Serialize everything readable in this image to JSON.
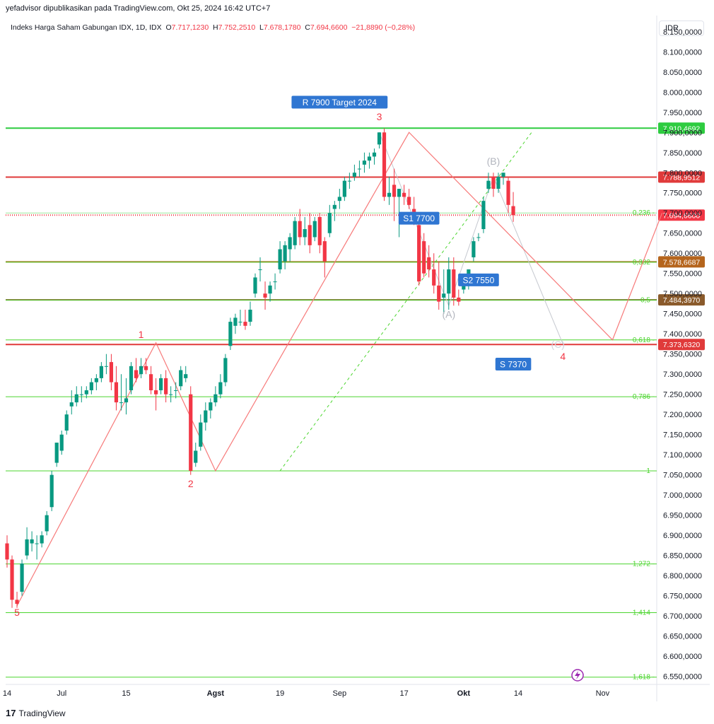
{
  "header": {
    "publisher": "yefadvisor dipublikasikan pada TradingView.com, Okt 25, 2024 16:42 UTC+7",
    "symbol_title": "Indeks Harga Saham Gabungan IDX, 1D, IDX",
    "ohlc": {
      "O": "7.717,1230",
      "H": "7.752,2510",
      "L": "7.678,1780",
      "C": "7.694,6600",
      "change": "−21,8890 (−0,28%)"
    }
  },
  "currency": "IDR",
  "brand": {
    "name": "TradingView",
    "logo_text": "17"
  },
  "colors": {
    "up": "#089981",
    "down": "#f23645",
    "fib": "#4cd52f",
    "red_line": "#e03a3a",
    "brown_line": "#8a5a2b",
    "wave": "#f77a7a",
    "label_blue": "#2f76d2",
    "grey_wave": "#c5c8cf"
  },
  "chart_data": {
    "type": "candlestick",
    "y_axis": {
      "ylim": [
        6530,
        8190
      ],
      "ticks": [
        "8.150,0000",
        "8.100,0000",
        "8.050,0000",
        "8.000,0000",
        "7.950,0000",
        "7.900,0000",
        "7.850,0000",
        "7.800,0000",
        "7.750,0000",
        "7.700,0000",
        "7.650,0000",
        "7.600,0000",
        "7.550,0000",
        "7.500,0000",
        "7.450,0000",
        "7.400,0000",
        "7.350,0000",
        "7.300,0000",
        "7.250,0000",
        "7.200,0000",
        "7.150,0000",
        "7.100,0000",
        "7.050,0000",
        "7.000,0000",
        "6.950,0000",
        "6.900,0000",
        "6.850,0000",
        "6.800,0000",
        "6.750,0000",
        "6.700,0000",
        "6.650,0000",
        "6.600,0000",
        "6.550,0000"
      ],
      "tick_values": [
        8150,
        8100,
        8050,
        8000,
        7950,
        7900,
        7850,
        7800,
        7750,
        7700,
        7650,
        7600,
        7550,
        7500,
        7450,
        7400,
        7350,
        7300,
        7250,
        7200,
        7150,
        7100,
        7050,
        7000,
        6950,
        6900,
        6850,
        6800,
        6750,
        6700,
        6650,
        6600,
        6550
      ]
    },
    "x_axis": {
      "labels": [
        "14",
        "Jul",
        "15",
        "Agst",
        "19",
        "Sep",
        "17",
        "Okt",
        "14",
        "Nov"
      ],
      "bold": [
        false,
        false,
        false,
        true,
        false,
        false,
        false,
        true,
        false,
        false
      ],
      "label_index": [
        0,
        11,
        24,
        42,
        55,
        67,
        80,
        92,
        103,
        120
      ]
    },
    "candles": [
      {
        "o": 6880,
        "h": 6900,
        "l": 6820,
        "c": 6840
      },
      {
        "o": 6840,
        "h": 6850,
        "l": 6720,
        "c": 6740
      },
      {
        "o": 6740,
        "h": 6760,
        "l": 6720,
        "c": 6730
      },
      {
        "o": 6760,
        "h": 6840,
        "l": 6750,
        "c": 6830
      },
      {
        "o": 6850,
        "h": 6920,
        "l": 6840,
        "c": 6890
      },
      {
        "o": 6880,
        "h": 6910,
        "l": 6860,
        "c": 6890
      },
      {
        "o": 6880,
        "h": 6900,
        "l": 6840,
        "c": 6880
      },
      {
        "o": 6880,
        "h": 6910,
        "l": 6870,
        "c": 6900
      },
      {
        "o": 6910,
        "h": 6960,
        "l": 6900,
        "c": 6950
      },
      {
        "o": 6970,
        "h": 7060,
        "l": 6960,
        "c": 7050
      },
      {
        "o": 7080,
        "h": 7130,
        "l": 7070,
        "c": 7130
      },
      {
        "o": 7110,
        "h": 7160,
        "l": 7100,
        "c": 7150
      },
      {
        "o": 7160,
        "h": 7210,
        "l": 7150,
        "c": 7200
      },
      {
        "o": 7220,
        "h": 7260,
        "l": 7200,
        "c": 7230
      },
      {
        "o": 7230,
        "h": 7270,
        "l": 7220,
        "c": 7250
      },
      {
        "o": 7250,
        "h": 7270,
        "l": 7230,
        "c": 7250
      },
      {
        "o": 7250,
        "h": 7270,
        "l": 7240,
        "c": 7260
      },
      {
        "o": 7260,
        "h": 7290,
        "l": 7250,
        "c": 7280
      },
      {
        "o": 7280,
        "h": 7300,
        "l": 7260,
        "c": 7290
      },
      {
        "o": 7290,
        "h": 7330,
        "l": 7280,
        "c": 7320
      },
      {
        "o": 7320,
        "h": 7350,
        "l": 7300,
        "c": 7320
      },
      {
        "o": 7330,
        "h": 7350,
        "l": 7260,
        "c": 7280
      },
      {
        "o": 7280,
        "h": 7320,
        "l": 7210,
        "c": 7230
      },
      {
        "o": 7230,
        "h": 7300,
        "l": 7210,
        "c": 7230
      },
      {
        "o": 7230,
        "h": 7290,
        "l": 7200,
        "c": 7240
      },
      {
        "o": 7260,
        "h": 7330,
        "l": 7250,
        "c": 7320
      },
      {
        "o": 7310,
        "h": 7340,
        "l": 7280,
        "c": 7290
      },
      {
        "o": 7300,
        "h": 7340,
        "l": 7290,
        "c": 7320
      },
      {
        "o": 7320,
        "h": 7340,
        "l": 7300,
        "c": 7310
      },
      {
        "o": 7300,
        "h": 7320,
        "l": 7250,
        "c": 7260
      },
      {
        "o": 7260,
        "h": 7290,
        "l": 7210,
        "c": 7250
      },
      {
        "o": 7260,
        "h": 7300,
        "l": 7250,
        "c": 7290
      },
      {
        "o": 7290,
        "h": 7310,
        "l": 7230,
        "c": 7250
      },
      {
        "o": 7250,
        "h": 7270,
        "l": 7230,
        "c": 7250
      },
      {
        "o": 7260,
        "h": 7280,
        "l": 7240,
        "c": 7260
      },
      {
        "o": 7270,
        "h": 7320,
        "l": 7260,
        "c": 7310
      },
      {
        "o": 7290,
        "h": 7320,
        "l": 7280,
        "c": 7300
      },
      {
        "o": 7250,
        "h": 7270,
        "l": 7050,
        "c": 7060
      },
      {
        "o": 7080,
        "h": 7130,
        "l": 7070,
        "c": 7110
      },
      {
        "o": 7120,
        "h": 7200,
        "l": 7110,
        "c": 7180
      },
      {
        "o": 7180,
        "h": 7230,
        "l": 7160,
        "c": 7210
      },
      {
        "o": 7210,
        "h": 7240,
        "l": 7190,
        "c": 7230
      },
      {
        "o": 7230,
        "h": 7270,
        "l": 7220,
        "c": 7250
      },
      {
        "o": 7250,
        "h": 7300,
        "l": 7240,
        "c": 7280
      },
      {
        "o": 7280,
        "h": 7350,
        "l": 7270,
        "c": 7340
      },
      {
        "o": 7370,
        "h": 7440,
        "l": 7360,
        "c": 7430
      },
      {
        "o": 7420,
        "h": 7450,
        "l": 7400,
        "c": 7440
      },
      {
        "o": 7430,
        "h": 7460,
        "l": 7420,
        "c": 7430
      },
      {
        "o": 7430,
        "h": 7460,
        "l": 7410,
        "c": 7420
      },
      {
        "o": 7430,
        "h": 7480,
        "l": 7420,
        "c": 7460
      },
      {
        "o": 7500,
        "h": 7550,
        "l": 7490,
        "c": 7540
      },
      {
        "o": 7560,
        "h": 7590,
        "l": 7530,
        "c": 7560
      },
      {
        "o": 7500,
        "h": 7530,
        "l": 7460,
        "c": 7490
      },
      {
        "o": 7500,
        "h": 7530,
        "l": 7480,
        "c": 7520
      },
      {
        "o": 7530,
        "h": 7550,
        "l": 7510,
        "c": 7530
      },
      {
        "o": 7560,
        "h": 7630,
        "l": 7550,
        "c": 7610
      },
      {
        "o": 7580,
        "h": 7630,
        "l": 7560,
        "c": 7620
      },
      {
        "o": 7610,
        "h": 7650,
        "l": 7580,
        "c": 7640
      },
      {
        "o": 7620,
        "h": 7690,
        "l": 7610,
        "c": 7680
      },
      {
        "o": 7680,
        "h": 7710,
        "l": 7620,
        "c": 7640
      },
      {
        "o": 7640,
        "h": 7690,
        "l": 7620,
        "c": 7660
      },
      {
        "o": 7670,
        "h": 7700,
        "l": 7600,
        "c": 7620
      },
      {
        "o": 7640,
        "h": 7690,
        "l": 7630,
        "c": 7680
      },
      {
        "o": 7690,
        "h": 7700,
        "l": 7600,
        "c": 7620
      },
      {
        "o": 7630,
        "h": 7640,
        "l": 7540,
        "c": 7580
      },
      {
        "o": 7650,
        "h": 7720,
        "l": 7640,
        "c": 7700
      },
      {
        "o": 7710,
        "h": 7730,
        "l": 7680,
        "c": 7720
      },
      {
        "o": 7730,
        "h": 7760,
        "l": 7710,
        "c": 7740
      },
      {
        "o": 7740,
        "h": 7790,
        "l": 7730,
        "c": 7780
      },
      {
        "o": 7780,
        "h": 7800,
        "l": 7760,
        "c": 7780
      },
      {
        "o": 7790,
        "h": 7820,
        "l": 7780,
        "c": 7800
      },
      {
        "o": 7810,
        "h": 7830,
        "l": 7790,
        "c": 7810
      },
      {
        "o": 7820,
        "h": 7850,
        "l": 7800,
        "c": 7830
      },
      {
        "o": 7830,
        "h": 7850,
        "l": 7810,
        "c": 7840
      },
      {
        "o": 7840,
        "h": 7860,
        "l": 7820,
        "c": 7850
      },
      {
        "o": 7870,
        "h": 7900,
        "l": 7860,
        "c": 7900
      },
      {
        "o": 7900,
        "h": 7910,
        "l": 7730,
        "c": 7740
      },
      {
        "o": 7740,
        "h": 7790,
        "l": 7720,
        "c": 7750
      },
      {
        "o": 7770,
        "h": 7810,
        "l": 7680,
        "c": 7740
      },
      {
        "o": 7740,
        "h": 7760,
        "l": 7640,
        "c": 7760
      },
      {
        "o": 7750,
        "h": 7770,
        "l": 7720,
        "c": 7740
      },
      {
        "o": 7740,
        "h": 7760,
        "l": 7710,
        "c": 7720
      },
      {
        "o": 7710,
        "h": 7740,
        "l": 7670,
        "c": 7690
      },
      {
        "o": 7670,
        "h": 7680,
        "l": 7520,
        "c": 7530
      },
      {
        "o": 7630,
        "h": 7650,
        "l": 7540,
        "c": 7550
      },
      {
        "o": 7590,
        "h": 7620,
        "l": 7540,
        "c": 7560
      },
      {
        "o": 7560,
        "h": 7600,
        "l": 7500,
        "c": 7520
      },
      {
        "o": 7520,
        "h": 7580,
        "l": 7460,
        "c": 7480
      },
      {
        "o": 7490,
        "h": 7560,
        "l": 7450,
        "c": 7500
      },
      {
        "o": 7500,
        "h": 7590,
        "l": 7460,
        "c": 7560
      },
      {
        "o": 7560,
        "h": 7590,
        "l": 7470,
        "c": 7490
      },
      {
        "o": 7490,
        "h": 7510,
        "l": 7470,
        "c": 7480
      },
      {
        "o": 7510,
        "h": 7540,
        "l": 7500,
        "c": 7530
      },
      {
        "o": 7520,
        "h": 7560,
        "l": 7510,
        "c": 7560
      },
      {
        "o": 7590,
        "h": 7640,
        "l": 7580,
        "c": 7630
      },
      {
        "o": 7640,
        "h": 7650,
        "l": 7630,
        "c": 7640
      },
      {
        "o": 7660,
        "h": 7740,
        "l": 7650,
        "c": 7730
      },
      {
        "o": 7760,
        "h": 7800,
        "l": 7750,
        "c": 7780
      },
      {
        "o": 7790,
        "h": 7800,
        "l": 7740,
        "c": 7760
      },
      {
        "o": 7760,
        "h": 7800,
        "l": 7750,
        "c": 7790
      },
      {
        "o": 7790,
        "h": 7800,
        "l": 7770,
        "c": 7800
      },
      {
        "o": 7780,
        "h": 7790,
        "l": 7700,
        "c": 7720
      },
      {
        "o": 7717,
        "h": 7752,
        "l": 7678,
        "c": 7695
      }
    ],
    "levels": [
      {
        "value": 7910.4692,
        "label": "7.910,4692",
        "color": "#2ecc40",
        "fib": ""
      },
      {
        "value": 7788.9512,
        "label": "7.788,9512",
        "color": "#e03a3a",
        "fib": ""
      },
      {
        "value": 7694.66,
        "label": "7.694,6600",
        "color": "#f23645",
        "fib": "",
        "dotted": true
      },
      {
        "value": 7700,
        "label": "",
        "color": "#9be89b",
        "fib": "0,236"
      },
      {
        "value": 7578.6687,
        "label": "7.578,6687",
        "color": "#b5651d",
        "fib": ""
      },
      {
        "value": 7578,
        "label": "",
        "color": "#4cd52f",
        "fib": "0,382"
      },
      {
        "value": 7484.397,
        "label": "7.484,3970",
        "color": "#8a5a2b",
        "fib": ""
      },
      {
        "value": 7484,
        "label": "",
        "color": "#4cd52f",
        "fib": "0,5"
      },
      {
        "value": 7373.632,
        "label": "7.373,6320",
        "color": "#e03a3a",
        "fib": ""
      },
      {
        "value": 7385,
        "label": "",
        "color": "#4cd52f",
        "fib": "0,618"
      },
      {
        "value": 7244,
        "label": "",
        "color": "#4cd52f",
        "fib": "0,786"
      },
      {
        "value": 7060,
        "label": "",
        "color": "#4cd52f",
        "fib": "1"
      },
      {
        "value": 6829,
        "label": "",
        "color": "#4cd52f",
        "fib": "1,272"
      },
      {
        "value": 6708,
        "label": "",
        "color": "#4cd52f",
        "fib": "1,414"
      },
      {
        "value": 6548,
        "label": "",
        "color": "#4cd52f",
        "fib": "1,618"
      }
    ],
    "wave_labels": [
      {
        "text": "5",
        "i": 2,
        "y": 6700,
        "color": "#f23645"
      },
      {
        "text": "1",
        "i": 27,
        "y": 7390,
        "color": "#f23645"
      },
      {
        "text": "2",
        "i": 37,
        "y": 7020,
        "color": "#f23645"
      },
      {
        "text": "3",
        "i": 75,
        "y": 7930,
        "color": "#f23645"
      },
      {
        "text": "4",
        "i": 112,
        "y": 7335,
        "color": "#f23645"
      },
      {
        "text": "(A)",
        "i": 89,
        "y": 7440,
        "color": "#b2b5be"
      },
      {
        "text": "(B)",
        "i": 98,
        "y": 7820,
        "color": "#b2b5be"
      },
      {
        "text": "(C)",
        "i": 111,
        "y": 7365,
        "color": "#d1d4dc"
      }
    ],
    "callouts": [
      {
        "text": "R 7900 Target 2024",
        "i": 67,
        "y": 7975
      },
      {
        "text": "S1 7700",
        "i": 83,
        "y": 7687
      },
      {
        "text": "S2 7550",
        "i": 95,
        "y": 7534
      },
      {
        "text": "S 7370",
        "i": 102,
        "y": 7325
      }
    ]
  }
}
